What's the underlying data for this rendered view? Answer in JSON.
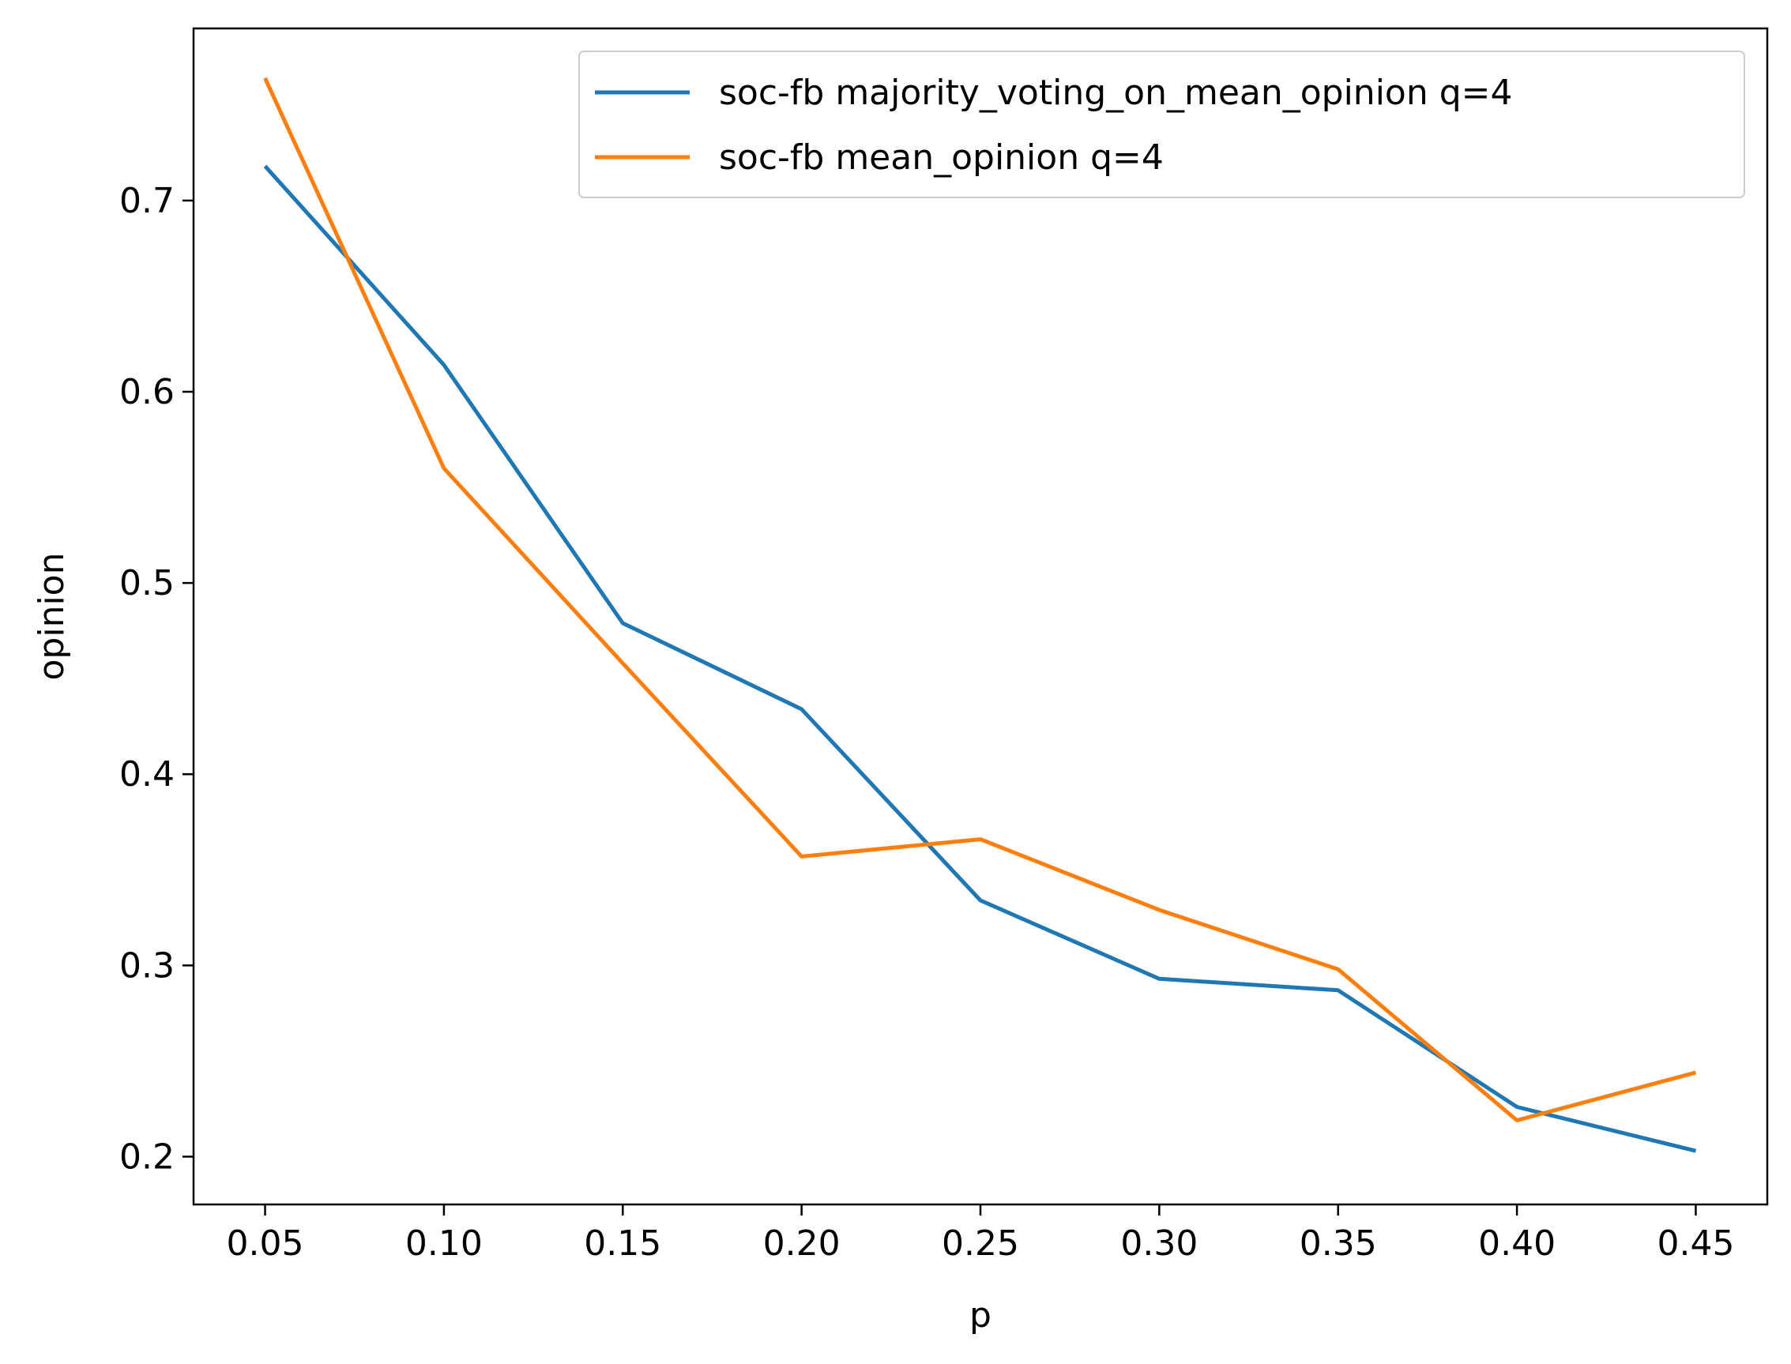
{
  "chart_data": {
    "type": "line",
    "title": "",
    "xlabel": "p",
    "ylabel": "opinion",
    "xlim": [
      0.03,
      0.47
    ],
    "ylim": [
      0.175,
      0.79
    ],
    "xticks": [
      "0.05",
      "0.10",
      "0.15",
      "0.20",
      "0.25",
      "0.30",
      "0.35",
      "0.40",
      "0.45"
    ],
    "yticks": [
      "0.2",
      "0.3",
      "0.4",
      "0.5",
      "0.6",
      "0.7"
    ],
    "x": [
      0.05,
      0.1,
      0.15,
      0.2,
      0.25,
      0.3,
      0.35,
      0.4,
      0.45
    ],
    "grid": false,
    "legend_position": "top-right",
    "series": [
      {
        "name": "soc-fb majority_voting_on_mean_opinion q=4",
        "color": "#1f77b4",
        "values": [
          0.718,
          0.614,
          0.479,
          0.434,
          0.334,
          0.293,
          0.287,
          0.226,
          0.203
        ]
      },
      {
        "name": "soc-fb mean_opinion q=4",
        "color": "#ff7f0e",
        "values": [
          0.764,
          0.56,
          0.458,
          0.357,
          0.366,
          0.329,
          0.298,
          0.219,
          0.244
        ]
      }
    ]
  }
}
